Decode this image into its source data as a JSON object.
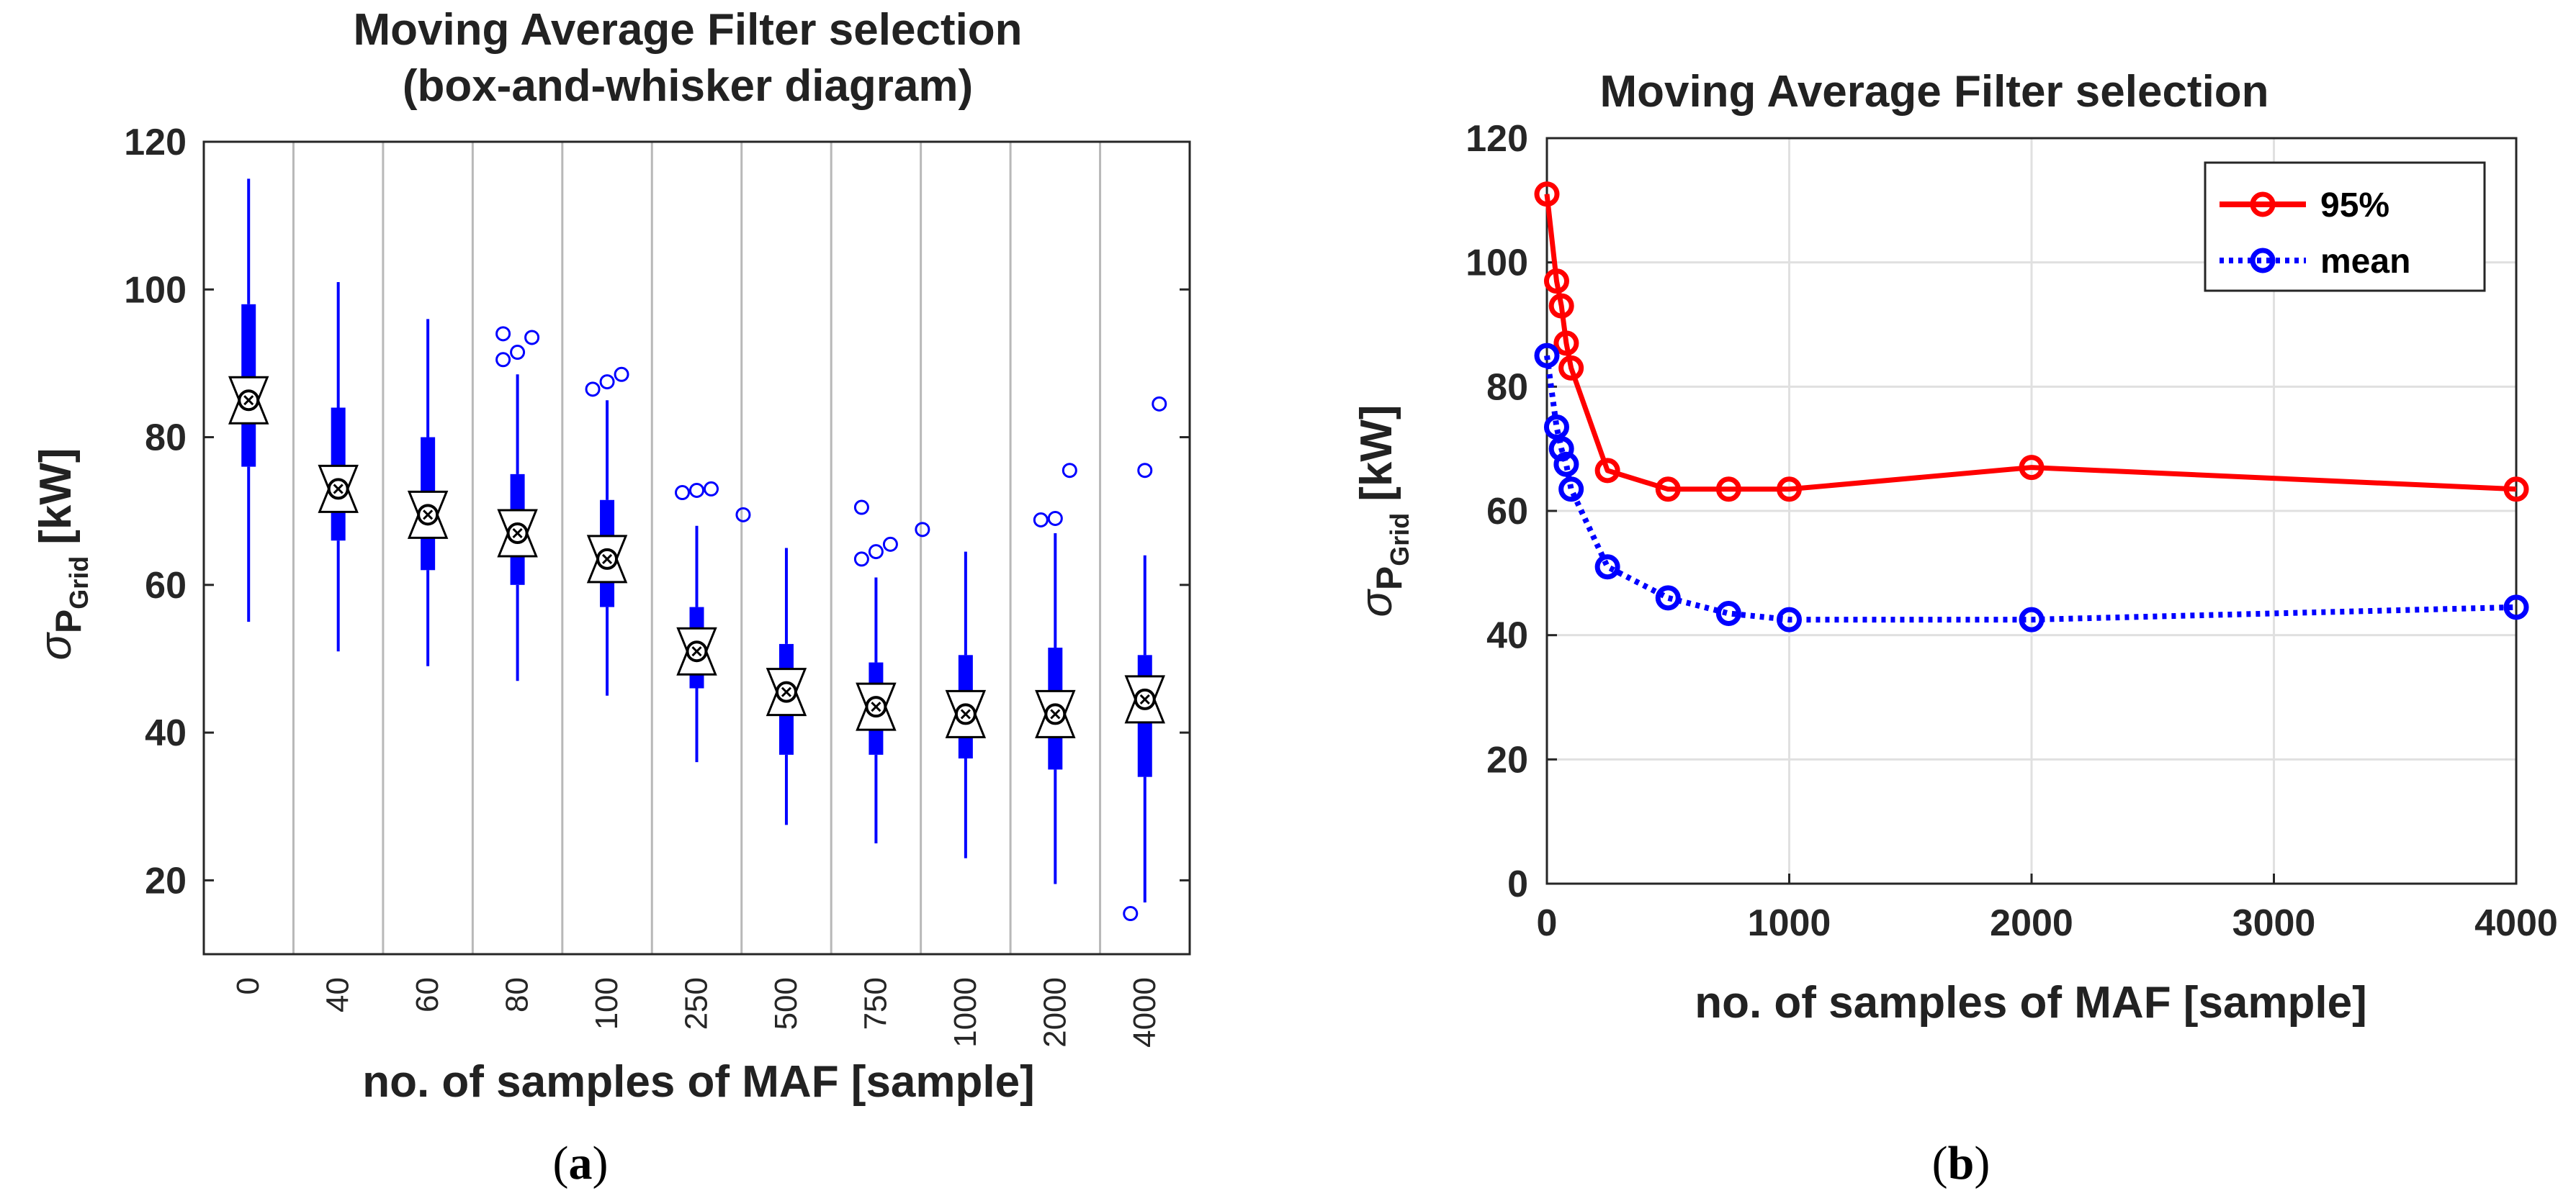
{
  "chart_data": [
    {
      "type": "box",
      "panel": "a",
      "title_line1": "Moving Average Filter selection",
      "title_line2": "(box-and-whisker diagram)",
      "ylabel_sigma": "σ",
      "ylabel_sub_p": "P",
      "ylabel_sub_grid": "Grid",
      "ylabel_unit": "[kW]",
      "xlabel": "no. of samples of MAF [sample]",
      "ylim": [
        10,
        120
      ],
      "yticks": [
        20,
        40,
        60,
        80,
        100,
        120
      ],
      "categories": [
        "0",
        "40",
        "60",
        "80",
        "100",
        "250",
        "500",
        "750",
        "1000",
        "2000",
        "4000"
      ],
      "boxes": [
        {
          "whisker_low": 55,
          "q1": 76,
          "median": 85,
          "q3": 98,
          "whisker_high": 115,
          "outliers": []
        },
        {
          "whisker_low": 51,
          "q1": 66,
          "median": 73,
          "q3": 84,
          "whisker_high": 101,
          "outliers": []
        },
        {
          "whisker_low": 49,
          "q1": 62,
          "median": 69.5,
          "q3": 80,
          "whisker_high": 96,
          "outliers": []
        },
        {
          "whisker_low": 47,
          "q1": 60,
          "median": 67,
          "q3": 75,
          "whisker_high": 88.5,
          "outliers": [
            90.5,
            91.5,
            93.5,
            94
          ]
        },
        {
          "whisker_low": 45,
          "q1": 57,
          "median": 63.5,
          "q3": 71.5,
          "whisker_high": 85,
          "outliers": [
            86.5,
            87.5,
            88.5
          ]
        },
        {
          "whisker_low": 36,
          "q1": 46,
          "median": 51,
          "q3": 57,
          "whisker_high": 68,
          "outliers": [
            72.5,
            72.8,
            73
          ]
        },
        {
          "whisker_low": 27.5,
          "q1": 37,
          "median": 45.5,
          "q3": 52,
          "whisker_high": 65,
          "outliers": [
            69.5
          ]
        },
        {
          "whisker_low": 25,
          "q1": 37,
          "median": 43.5,
          "q3": 49.5,
          "whisker_high": 61,
          "outliers": [
            63.5,
            64.5,
            65.5,
            70.5
          ]
        },
        {
          "whisker_low": 23,
          "q1": 36.5,
          "median": 42.5,
          "q3": 50.5,
          "whisker_high": 64.5,
          "outliers": [
            67.5
          ]
        },
        {
          "whisker_low": 19.5,
          "q1": 35,
          "median": 42.5,
          "q3": 51.5,
          "whisker_high": 67,
          "outliers": [
            68.8,
            69,
            75.5
          ]
        },
        {
          "whisker_low": 17,
          "q1": 34,
          "median": 44.5,
          "q3": 50.5,
          "whisker_high": 64,
          "outliers": [
            15.5,
            75.5,
            84.5
          ]
        }
      ]
    },
    {
      "type": "line",
      "panel": "b",
      "title": "Moving Average Filter selection",
      "ylabel_sigma": "σ",
      "ylabel_sub_p": "P",
      "ylabel_sub_grid": "Grid",
      "ylabel_unit": "[kW]",
      "xlabel": "no. of samples of MAF [sample]",
      "xlim": [
        0,
        4000
      ],
      "ylim": [
        0,
        120
      ],
      "xticks": [
        0,
        1000,
        2000,
        3000,
        4000
      ],
      "yticks": [
        0,
        20,
        40,
        60,
        80,
        100,
        120
      ],
      "grid": true,
      "legend_position": "top-right",
      "x": [
        0,
        40,
        60,
        80,
        100,
        250,
        500,
        750,
        1000,
        2000,
        4000
      ],
      "series": [
        {
          "name": "95%",
          "color": "#ff0000",
          "style": "solid",
          "values": [
            111,
            97,
            93,
            87,
            83,
            66.5,
            63.5,
            63.5,
            63.5,
            67,
            63.5
          ]
        },
        {
          "name": "mean",
          "color": "#0000ff",
          "style": "dotted",
          "values": [
            85,
            73.5,
            70,
            67.5,
            63.5,
            51,
            46,
            43.5,
            42.5,
            42.5,
            44.5
          ]
        }
      ]
    }
  ],
  "captions": {
    "a_open": "(",
    "a_letter": "a",
    "a_close": ")",
    "b_open": "(",
    "b_letter": "b",
    "b_close": ")"
  },
  "colors": {
    "box_blue": "#0000ff",
    "line_red": "#ff0000",
    "line_blue": "#0000ff",
    "grid": "#e0e0e0",
    "axis": "#262626"
  }
}
